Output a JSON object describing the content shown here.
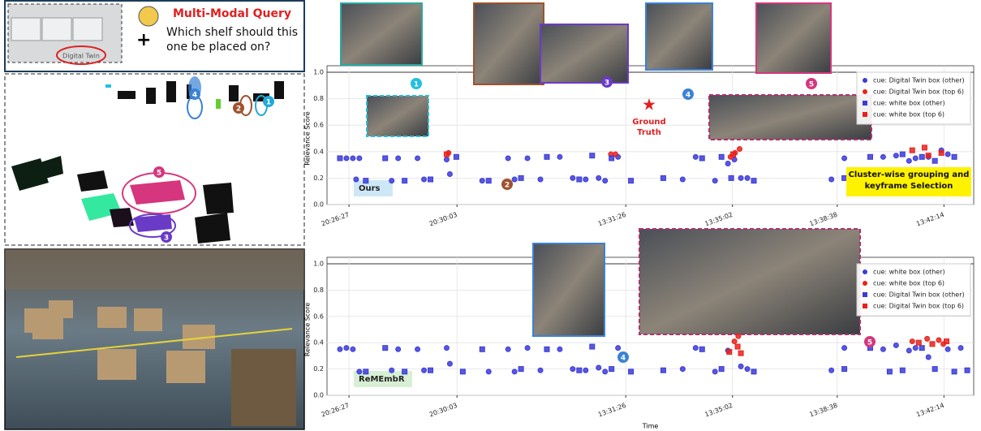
{
  "query": {
    "title": "Multi-Modal Query",
    "question": "Which shelf should this one be placed on?",
    "image_label": "Digital Twin"
  },
  "scene_labels": [
    "1",
    "2",
    "3",
    "4",
    "5"
  ],
  "chart_data": [
    {
      "type": "scatter",
      "ylabel": "Relevance Score",
      "xlim": [
        0,
        100
      ],
      "ylim": [
        0,
        1
      ],
      "xticks": [
        {
          "value": 3.4,
          "label": "20:26:27"
        },
        {
          "value": 20.1,
          "label": "20:30:03"
        },
        {
          "value": 46.2,
          "label": "13:31:26"
        },
        {
          "value": 62.7,
          "label": "13:35:02"
        },
        {
          "value": 78.9,
          "label": "13:38:38"
        },
        {
          "value": 95.4,
          "label": "13:42:14"
        }
      ],
      "yticks": [
        {
          "value": 0,
          "label": "0.0"
        },
        0.2,
        0.4,
        0.6,
        0.8,
        {
          "value": 1,
          "label": "1.0"
        }
      ],
      "grid": true,
      "legend": "upper right",
      "method": "Ours",
      "annotations": [
        "1",
        "2",
        "3",
        "4",
        "5",
        "Ground Truth",
        "Cluster-wise grouping and keyframe Selection"
      ],
      "series": [
        {
          "name": "cue: Digital Twin box (other)",
          "marker": "circle",
          "color": "#3b3bd9",
          "x": [
            3,
            4,
            5,
            4.5,
            10,
            11,
            14,
            15,
            18.5,
            19,
            24,
            28,
            29,
            31,
            33,
            36,
            38,
            40,
            42,
            43,
            45,
            55,
            57,
            60,
            62,
            63,
            64,
            65,
            78,
            80,
            86,
            88,
            90,
            91,
            93,
            95,
            96
          ],
          "values": [
            0.35,
            0.35,
            0.35,
            0.19,
            0.18,
            0.35,
            0.35,
            0.19,
            0.34,
            0.23,
            0.18,
            0.35,
            0.19,
            0.35,
            0.19,
            0.36,
            0.2,
            0.19,
            0.2,
            0.18,
            0.36,
            0.19,
            0.36,
            0.18,
            0.31,
            0.34,
            0.2,
            0.2,
            0.19,
            0.35,
            0.36,
            0.37,
            0.33,
            0.35,
            0.36,
            0.41,
            0.38
          ]
        },
        {
          "name": "cue: Digital Twin box (top 6)",
          "marker": "circle",
          "color": "#e8221b",
          "x": [
            18.8,
            43.9,
            44.6,
            63.1,
            63.8,
            62.4
          ],
          "values": [
            0.39,
            0.38,
            0.38,
            0.39,
            0.42,
            0.36
          ]
        },
        {
          "name": "cue: white box (other)",
          "marker": "square",
          "color": "#3b3bd9",
          "x": [
            2,
            6,
            9,
            12,
            16,
            20,
            25,
            30,
            34,
            39,
            41,
            44,
            47,
            52,
            58,
            61,
            62.5,
            66,
            80,
            84,
            87,
            89,
            92,
            94,
            97
          ],
          "values": [
            0.35,
            0.18,
            0.35,
            0.18,
            0.19,
            0.36,
            0.18,
            0.2,
            0.36,
            0.19,
            0.37,
            0.35,
            0.18,
            0.2,
            0.35,
            0.36,
            0.2,
            0.18,
            0.2,
            0.36,
            0.18,
            0.38,
            0.36,
            0.33,
            0.36
          ]
        },
        {
          "name": "cue: white box (top 6)",
          "marker": "square",
          "color": "#e8221b",
          "x": [
            18.5,
            92.4,
            90.5,
            95,
            93,
            62.8
          ],
          "values": [
            0.38,
            0.43,
            0.41,
            0.39,
            0.37,
            0.38
          ]
        }
      ]
    },
    {
      "type": "scatter",
      "ylabel": "Relevance Score",
      "xlabel": "Time",
      "xlim": [
        0,
        100
      ],
      "ylim": [
        0,
        1
      ],
      "xticks": [
        {
          "value": 3.4,
          "label": "20:26:27"
        },
        {
          "value": 20.1,
          "label": "20:30:03"
        },
        {
          "value": 46.2,
          "label": "13:31:26"
        },
        {
          "value": 62.7,
          "label": "13:35:02"
        },
        {
          "value": 78.9,
          "label": "13:38:38"
        },
        {
          "value": 95.4,
          "label": "13:42:14"
        }
      ],
      "yticks": [
        {
          "value": 0,
          "label": "0.0"
        },
        0.2,
        0.4,
        0.6,
        0.8,
        {
          "value": 1,
          "label": "1.0"
        }
      ],
      "grid": true,
      "legend": "upper right",
      "method": "ReMEmbR",
      "annotations": [
        "4",
        "5"
      ],
      "series": [
        {
          "name": "cue: white box (other)",
          "marker": "circle",
          "color": "#3b3bd9",
          "x": [
            2,
            3,
            4,
            5,
            10,
            11,
            14,
            15,
            18.5,
            19,
            25,
            28,
            29,
            31,
            33,
            36,
            38,
            40,
            42,
            43,
            45,
            55,
            57,
            60,
            62,
            64,
            65,
            78,
            80,
            86,
            88,
            90,
            91,
            93,
            96,
            98
          ],
          "values": [
            0.35,
            0.36,
            0.35,
            0.18,
            0.19,
            0.35,
            0.35,
            0.19,
            0.36,
            0.24,
            0.18,
            0.35,
            0.18,
            0.36,
            0.19,
            0.35,
            0.2,
            0.19,
            0.21,
            0.18,
            0.36,
            0.2,
            0.36,
            0.18,
            0.34,
            0.22,
            0.2,
            0.19,
            0.36,
            0.35,
            0.38,
            0.34,
            0.36,
            0.29,
            0.35,
            0.36
          ]
        },
        {
          "name": "cue: white box (top 6)",
          "marker": "circle",
          "color": "#e8221b",
          "x": [
            63.0,
            63.6,
            90.5,
            92.8,
            94.6,
            95.3
          ],
          "values": [
            0.41,
            0.45,
            0.41,
            0.43,
            0.42,
            0.39
          ]
        },
        {
          "name": "cue: Digital Twin box (other)",
          "marker": "square",
          "color": "#3b3bd9",
          "x": [
            6,
            9,
            12,
            16,
            21,
            24,
            30,
            34,
            39,
            41,
            44,
            47,
            52,
            58,
            61,
            66,
            80,
            84,
            87,
            89,
            92,
            94,
            97,
            99
          ],
          "values": [
            0.18,
            0.36,
            0.18,
            0.19,
            0.18,
            0.35,
            0.2,
            0.35,
            0.19,
            0.37,
            0.2,
            0.18,
            0.19,
            0.35,
            0.2,
            0.18,
            0.2,
            0.36,
            0.18,
            0.19,
            0.36,
            0.2,
            0.18,
            0.19
          ]
        },
        {
          "name": "cue: Digital Twin box (top 6)",
          "marker": "square",
          "color": "#e8221b",
          "x": [
            62.2,
            63.5,
            64.0,
            91.5,
            93.6,
            95.8
          ],
          "values": [
            0.33,
            0.37,
            0.32,
            0.4,
            0.39,
            0.41
          ]
        }
      ]
    }
  ]
}
